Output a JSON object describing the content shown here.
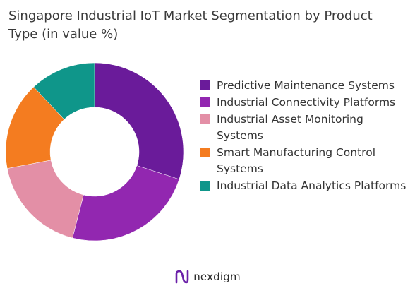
{
  "title": "Singapore Industrial IoT Market Segmentation by Product Type (in value %)",
  "brand": {
    "name": "nexdigm",
    "icon": "nexdigm-logo-icon",
    "color": "#6a1fa8"
  },
  "chart_data": {
    "type": "pie",
    "title": "Singapore Industrial IoT Market Segmentation by Product Type (in value %)",
    "donut": true,
    "legend_position": "right",
    "categories": [
      "Predictive Maintenance Systems",
      "Industrial Connectivity Platforms",
      "Industrial Asset Monitoring Systems",
      "Smart Manufacturing Control Systems",
      "Industrial Data Analytics Platforms"
    ],
    "values": [
      30,
      24,
      18,
      16,
      12
    ],
    "colors": [
      "#6a1b9a",
      "#9227b0",
      "#e38fa6",
      "#f47c20",
      "#0f968a"
    ]
  }
}
